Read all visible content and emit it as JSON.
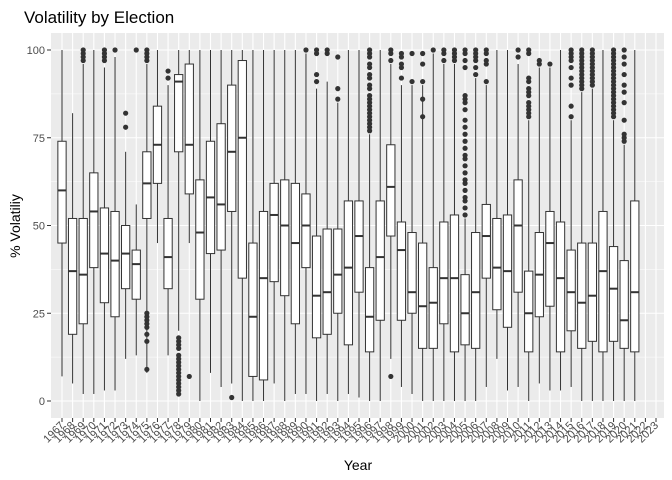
{
  "chart_data": {
    "type": "boxplot",
    "title": "Volatility by Election",
    "xlabel": "Year",
    "ylabel": "% Volatiliy",
    "ylim": [
      0,
      100
    ],
    "yticks": [
      "0",
      "25",
      "50",
      "75",
      "100"
    ],
    "grid": true,
    "legend": "none",
    "colors": {
      "panel": "#ebebeb",
      "grid_major": "#ffffff",
      "box_fill": "#ffffff",
      "box_line": "#333333",
      "outlier": "#333333",
      "text": "#4d4d4d"
    },
    "categories": [
      "1967",
      "1968",
      "1969",
      "1970",
      "1971",
      "1972",
      "1973",
      "1974",
      "1975",
      "1976",
      "1977",
      "1978",
      "1979",
      "1980",
      "1981",
      "1982",
      "1983",
      "1984",
      "1985",
      "1986",
      "1987",
      "1988",
      "1989",
      "1990",
      "1991",
      "1992",
      "1993",
      "1994",
      "1995",
      "1996",
      "1997",
      "1998",
      "1999",
      "2000",
      "2001",
      "2002",
      "2003",
      "2004",
      "2005",
      "2006",
      "2007",
      "2008",
      "2009",
      "2010",
      "2011",
      "2012",
      "2013",
      "2014",
      "2015",
      "2016",
      "2017",
      "2018",
      "2019",
      "2020",
      "2021",
      "2022",
      "2023"
    ],
    "boxes": [
      {
        "year": "1967",
        "min": 7,
        "q1": 45,
        "median": 60,
        "q3": 74,
        "max": 100,
        "outliers": []
      },
      {
        "year": "1968",
        "min": 5,
        "q1": 19,
        "median": 37,
        "q3": 52,
        "max": 82,
        "outliers": []
      },
      {
        "year": "1969",
        "min": 2,
        "q1": 22,
        "median": 36,
        "q3": 52,
        "max": 96,
        "outliers": [
          97,
          98,
          99,
          100
        ]
      },
      {
        "year": "1970",
        "min": 2,
        "q1": 38,
        "median": 54,
        "q3": 65,
        "max": 100,
        "outliers": []
      },
      {
        "year": "1971",
        "min": 3,
        "q1": 28,
        "median": 42,
        "q3": 55,
        "max": 95,
        "outliers": [
          97,
          98,
          99,
          100
        ]
      },
      {
        "year": "1972",
        "min": 3,
        "q1": 24,
        "median": 40,
        "q3": 54,
        "max": 98,
        "outliers": [
          100
        ]
      },
      {
        "year": "1973",
        "min": 12,
        "q1": 32,
        "median": 42,
        "q3": 50,
        "max": 71,
        "outliers": [
          78,
          82
        ]
      },
      {
        "year": "1974",
        "min": 13,
        "q1": 29,
        "median": 39,
        "q3": 43,
        "max": 56,
        "outliers": [
          100
        ]
      },
      {
        "year": "1975",
        "min": 8,
        "q1": 52,
        "median": 62,
        "q3": 71,
        "max": 96,
        "outliers": [
          9,
          17,
          19,
          21,
          22,
          23,
          24,
          25,
          97,
          98,
          99,
          100
        ]
      },
      {
        "year": "1976",
        "min": 45,
        "q1": 62,
        "median": 73,
        "q3": 84,
        "max": 100,
        "outliers": []
      },
      {
        "year": "1977",
        "min": 13,
        "q1": 32,
        "median": 41,
        "q3": 52,
        "max": 90,
        "outliers": [
          92,
          94
        ]
      },
      {
        "year": "1978",
        "min": 20,
        "q1": 71,
        "median": 91,
        "q3": 93,
        "max": 100,
        "outliers": [
          2,
          3,
          4,
          5,
          6,
          7,
          8,
          9,
          10,
          11,
          12,
          13,
          15,
          16,
          17,
          18
        ]
      },
      {
        "year": "1979",
        "min": 45,
        "q1": 59,
        "median": 73,
        "q3": 96,
        "max": 100,
        "outliers": [
          7
        ]
      },
      {
        "year": "1980",
        "min": 0,
        "q1": 29,
        "median": 48,
        "q3": 63,
        "max": 100,
        "outliers": []
      },
      {
        "year": "1981",
        "min": 8,
        "q1": 42,
        "median": 58,
        "q3": 74,
        "max": 100,
        "outliers": []
      },
      {
        "year": "1982",
        "min": 4,
        "q1": 43,
        "median": 56,
        "q3": 79,
        "max": 100,
        "outliers": []
      },
      {
        "year": "1983",
        "min": 5,
        "q1": 54,
        "median": 71,
        "q3": 90,
        "max": 100,
        "outliers": [
          1
        ]
      },
      {
        "year": "1984",
        "min": 0,
        "q1": 35,
        "median": 75,
        "q3": 97,
        "max": 100,
        "outliers": []
      },
      {
        "year": "1985",
        "min": 0,
        "q1": 7,
        "median": 24,
        "q3": 45,
        "max": 100,
        "outliers": []
      },
      {
        "year": "1986",
        "min": 0,
        "q1": 6,
        "median": 35,
        "q3": 54,
        "max": 100,
        "outliers": []
      },
      {
        "year": "1987",
        "min": 5,
        "q1": 34,
        "median": 53,
        "q3": 62,
        "max": 100,
        "outliers": []
      },
      {
        "year": "1988",
        "min": 0,
        "q1": 30,
        "median": 50,
        "q3": 63,
        "max": 100,
        "outliers": []
      },
      {
        "year": "1989",
        "min": 2,
        "q1": 22,
        "median": 45,
        "q3": 62,
        "max": 100,
        "outliers": []
      },
      {
        "year": "1990",
        "min": 2,
        "q1": 38,
        "median": 50,
        "q3": 59,
        "max": 99,
        "outliers": [
          100
        ]
      },
      {
        "year": "1991",
        "min": 0,
        "q1": 18,
        "median": 30,
        "q3": 47,
        "max": 89,
        "outliers": [
          91,
          93,
          99,
          100
        ]
      },
      {
        "year": "1992",
        "min": 2,
        "q1": 19,
        "median": 31,
        "q3": 49,
        "max": 91,
        "outliers": [
          99,
          100
        ]
      },
      {
        "year": "1993",
        "min": 0,
        "q1": 25,
        "median": 36,
        "q3": 49,
        "max": 85,
        "outliers": [
          86,
          89,
          98
        ]
      },
      {
        "year": "1994",
        "min": 2,
        "q1": 16,
        "median": 38,
        "q3": 57,
        "max": 100,
        "outliers": []
      },
      {
        "year": "1995",
        "min": 1,
        "q1": 31,
        "median": 47,
        "q3": 57,
        "max": 100,
        "outliers": []
      },
      {
        "year": "1996",
        "min": 0,
        "q1": 14,
        "median": 24,
        "q3": 38,
        "max": 76,
        "outliers": [
          77,
          78,
          79,
          80,
          81,
          82,
          83,
          84,
          85,
          86,
          87,
          89,
          90,
          92,
          93,
          95,
          96,
          98,
          99,
          100
        ]
      },
      {
        "year": "1997",
        "min": 0,
        "q1": 23,
        "median": 41,
        "q3": 57,
        "max": 100,
        "outliers": []
      },
      {
        "year": "1998",
        "min": 12,
        "q1": 47,
        "median": 61,
        "q3": 73,
        "max": 96,
        "outliers": [
          7,
          97,
          99,
          100
        ]
      },
      {
        "year": "1999",
        "min": 4,
        "q1": 23,
        "median": 43,
        "q3": 51,
        "max": 90,
        "outliers": [
          92,
          95,
          96,
          98,
          99
        ]
      },
      {
        "year": "2000",
        "min": 2,
        "q1": 25,
        "median": 31,
        "q3": 48,
        "max": 90,
        "outliers": [
          91,
          99
        ]
      },
      {
        "year": "2001",
        "min": 0,
        "q1": 15,
        "median": 27,
        "q3": 45,
        "max": 90,
        "outliers": [
          81,
          86,
          91,
          96,
          99
        ]
      },
      {
        "year": "2002",
        "min": 0,
        "q1": 15,
        "median": 28,
        "q3": 38,
        "max": 99,
        "outliers": [
          100
        ]
      },
      {
        "year": "2003",
        "min": 0,
        "q1": 22,
        "median": 35,
        "q3": 51,
        "max": 96,
        "outliers": [
          97,
          99,
          100
        ]
      },
      {
        "year": "2004",
        "min": 0,
        "q1": 14,
        "median": 35,
        "q3": 53,
        "max": 96,
        "outliers": [
          97,
          98,
          99,
          100
        ]
      },
      {
        "year": "2005",
        "min": 0,
        "q1": 16,
        "median": 25,
        "q3": 36,
        "max": 52,
        "outliers": [
          53,
          55,
          57,
          58,
          60,
          62,
          63,
          65,
          67,
          69,
          70,
          72,
          74,
          76,
          78,
          80,
          83,
          85,
          86,
          87,
          95,
          97,
          99,
          100
        ]
      },
      {
        "year": "2006",
        "min": 0,
        "q1": 15,
        "median": 31,
        "q3": 48,
        "max": 92,
        "outliers": [
          93,
          95,
          97,
          98,
          99,
          100
        ]
      },
      {
        "year": "2007",
        "min": 4,
        "q1": 35,
        "median": 47,
        "q3": 56,
        "max": 90,
        "outliers": [
          91,
          96,
          97,
          99,
          100
        ]
      },
      {
        "year": "2008",
        "min": 12,
        "q1": 26,
        "median": 38,
        "q3": 52,
        "max": 100,
        "outliers": []
      },
      {
        "year": "2009",
        "min": 3,
        "q1": 21,
        "median": 37,
        "q3": 53,
        "max": 100,
        "outliers": []
      },
      {
        "year": "2010",
        "min": 4,
        "q1": 31,
        "median": 50,
        "q3": 63,
        "max": 96,
        "outliers": [
          98,
          100
        ]
      },
      {
        "year": "2011",
        "min": 0,
        "q1": 14,
        "median": 25,
        "q3": 37,
        "max": 80,
        "outliers": [
          81,
          82,
          83,
          84,
          85,
          87,
          88,
          89,
          91,
          92,
          99,
          100
        ]
      },
      {
        "year": "2012",
        "min": 5,
        "q1": 24,
        "median": 36,
        "q3": 48,
        "max": 95,
        "outliers": [
          96,
          97
        ]
      },
      {
        "year": "2013",
        "min": 3,
        "q1": 27,
        "median": 45,
        "q3": 54,
        "max": 95,
        "outliers": [
          96
        ]
      },
      {
        "year": "2014",
        "min": 3,
        "q1": 14,
        "median": 35,
        "q3": 51,
        "max": 100,
        "outliers": []
      },
      {
        "year": "2015",
        "min": 4,
        "q1": 20,
        "median": 31,
        "q3": 43,
        "max": 80,
        "outliers": [
          81,
          84,
          90,
          92,
          95,
          97,
          98,
          99,
          100
        ]
      },
      {
        "year": "2016",
        "min": 0,
        "q1": 15,
        "median": 28,
        "q3": 45,
        "max": 88,
        "outliers": [
          89,
          90,
          91,
          92,
          93,
          94,
          95,
          96,
          97,
          98,
          99,
          100
        ]
      },
      {
        "year": "2017",
        "min": 0,
        "q1": 17,
        "median": 30,
        "q3": 45,
        "max": 89,
        "outliers": [
          90,
          91,
          92,
          93,
          94,
          95,
          96,
          97,
          98,
          99,
          100
        ]
      },
      {
        "year": "2018",
        "min": 0,
        "q1": 14,
        "median": 37,
        "q3": 54,
        "max": 100,
        "outliers": []
      },
      {
        "year": "2019",
        "min": 0,
        "q1": 17,
        "median": 32,
        "q3": 44,
        "max": 80,
        "outliers": [
          81,
          82,
          83,
          84,
          85,
          86,
          87,
          88,
          89,
          90,
          91,
          92,
          93,
          94,
          95,
          96,
          97,
          98,
          99,
          100
        ]
      },
      {
        "year": "2020",
        "min": 0,
        "q1": 15,
        "median": 23,
        "q3": 40,
        "max": 73,
        "outliers": [
          74,
          75,
          76,
          80,
          85,
          88,
          90,
          93,
          96,
          98,
          100
        ]
      },
      {
        "year": "2021",
        "min": 0,
        "q1": 14,
        "median": 31,
        "q3": 57,
        "max": 100,
        "outliers": []
      }
    ]
  }
}
